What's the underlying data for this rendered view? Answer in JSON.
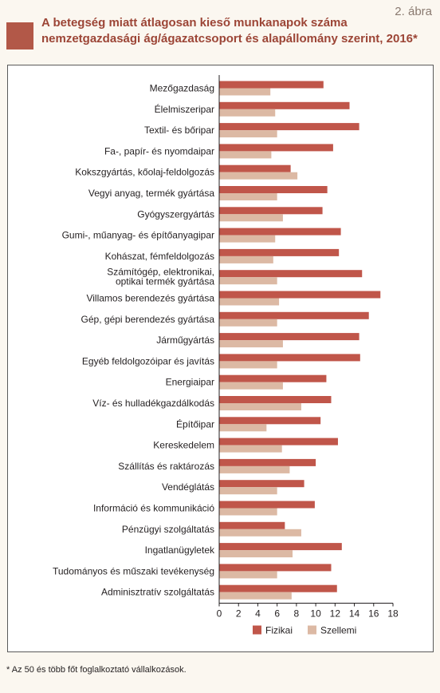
{
  "figure_label": "2. ábra",
  "colors": {
    "accent": "#b25848",
    "title": "#9c4536",
    "fizikai": "#c0564a",
    "szellemi": "#dcb9a4"
  },
  "title_lines": [
    "A betegség miatt átlagosan kieső munkanapok száma",
    "nemzetgazdasági ág/ágazatcsoport és alapállomány szerint, 2016*"
  ],
  "footnote": "* Az 50 és több főt foglalkoztató vállalkozások.",
  "chart_data": {
    "type": "bar",
    "orientation": "horizontal",
    "categories": [
      "Mezőgazdaság",
      "Élelmiszeripar",
      "Textil- és bőripar",
      "Fa-, papír- és nyomdaipar",
      "Kokszgyártás, kőolaj-feldolgozás",
      "Vegyi anyag, termék gyártása",
      "Gyógyszergyártás",
      "Gumi-, műanyag- és építőanyagipar",
      "Kohászat, fémfeldolgozás",
      "Számítógép, elektronikai,|optikai termék gyártása",
      "Villamos berendezés gyártása",
      "Gép, gépi berendezés gyártása",
      "Járműgyártás",
      "Egyéb feldolgozóipar és javítás",
      "Energiaipar",
      "Víz- és hulladékgazdálkodás",
      "Építőipar",
      "Kereskedelem",
      "Szállítás és raktározás",
      "Vendéglátás",
      "Információ és kommunikáció",
      "Pénzügyi szolgáltatás",
      "Ingatlanügyletek",
      "Tudományos és műszaki tevékenység",
      "Adminisztratív szolgáltatás"
    ],
    "series": [
      {
        "name": "Fizikai",
        "values": [
          10.8,
          13.5,
          14.5,
          11.8,
          7.4,
          11.2,
          10.7,
          12.6,
          12.4,
          14.8,
          16.7,
          15.5,
          14.5,
          14.6,
          11.1,
          11.6,
          10.5,
          12.3,
          10.0,
          8.8,
          9.9,
          6.8,
          12.7,
          11.6,
          12.2
        ]
      },
      {
        "name": "Szellemi",
        "values": [
          5.3,
          5.8,
          6.0,
          5.4,
          8.1,
          6.0,
          6.6,
          5.8,
          5.6,
          6.0,
          6.2,
          6.0,
          6.6,
          6.0,
          6.6,
          8.5,
          4.9,
          6.5,
          7.3,
          6.0,
          6.0,
          8.5,
          7.6,
          6.0,
          7.5
        ]
      }
    ],
    "x_ticks": [
      0,
      2,
      4,
      6,
      8,
      10,
      12,
      14,
      16,
      18
    ],
    "xlim": [
      0,
      18
    ],
    "legend": [
      "Fizikai",
      "Szellemi"
    ],
    "legend_position": "bottom-center",
    "grid": false
  }
}
